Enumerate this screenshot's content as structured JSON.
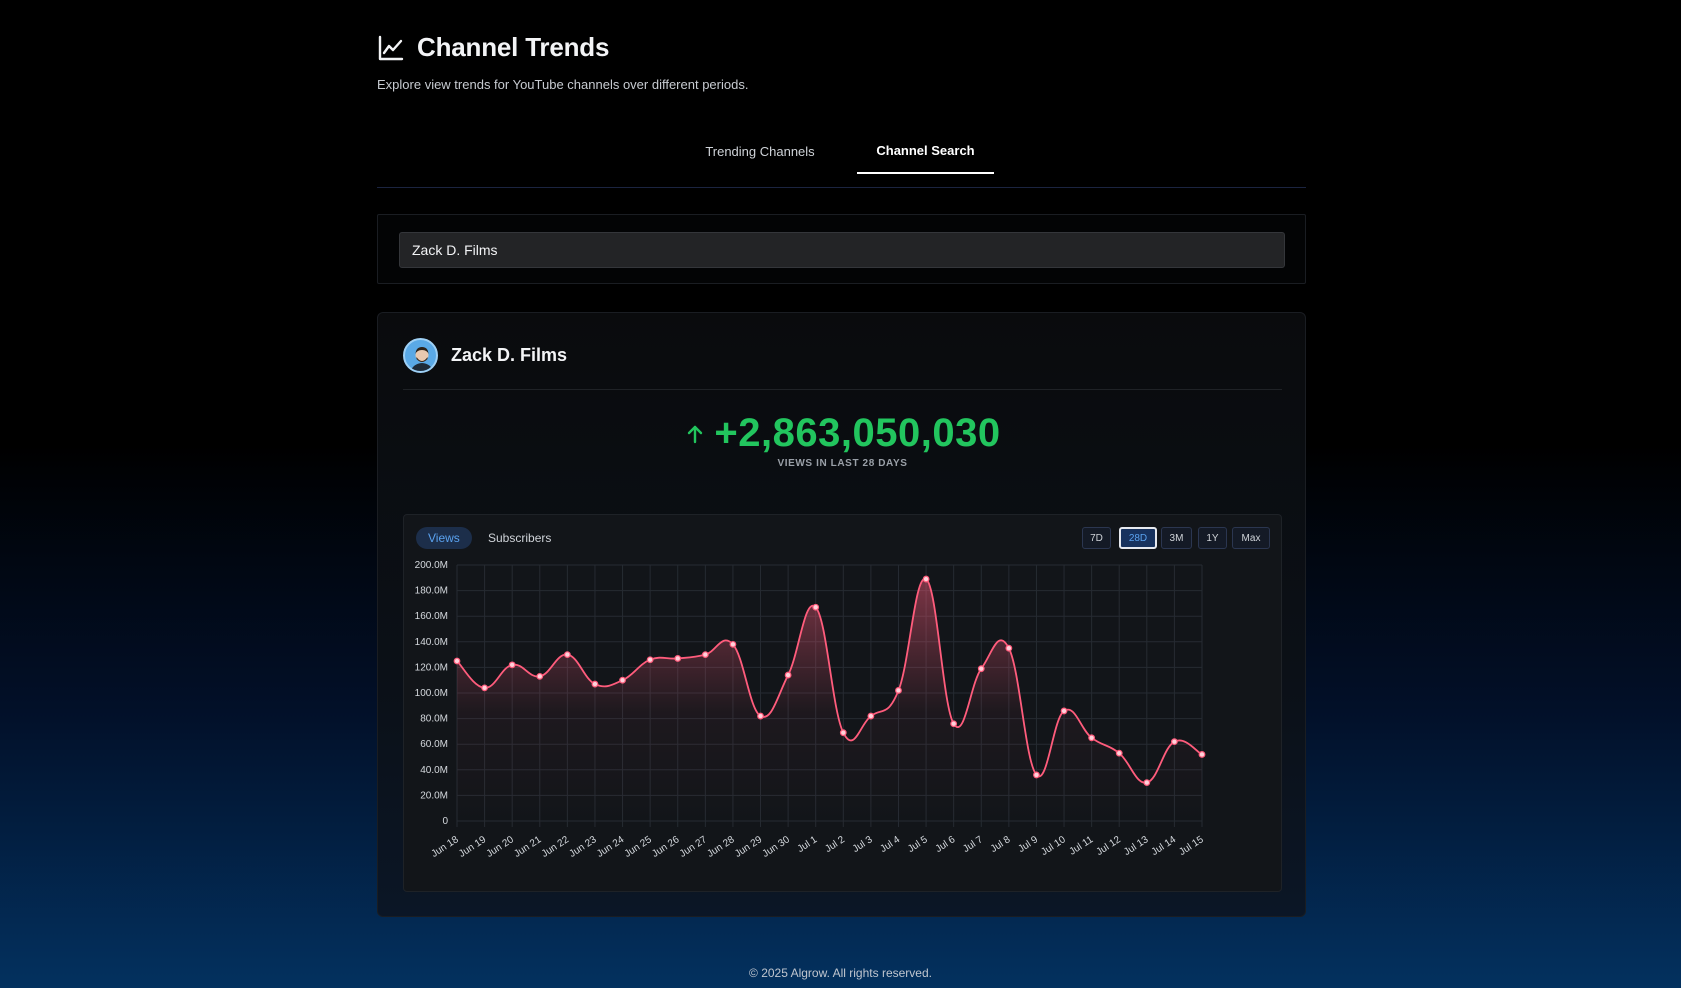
{
  "header": {
    "title": "Channel Trends",
    "subtitle": "Explore view trends for YouTube channels over different periods.",
    "icon": "line-chart-icon"
  },
  "tabs": [
    {
      "label": "Trending Channels",
      "active": false
    },
    {
      "label": "Channel Search",
      "active": true
    }
  ],
  "search": {
    "value": "Zack D. Films",
    "placeholder": ""
  },
  "channel": {
    "name": "Zack D. Films",
    "avatar_icon": "avatar-icon"
  },
  "stat": {
    "value": "+2,863,050,030",
    "label": "VIEWS IN LAST 28 DAYS",
    "color": "#22c55e"
  },
  "metric_tabs": [
    {
      "label": "Views",
      "active": true
    },
    {
      "label": "Subscribers",
      "active": false
    }
  ],
  "periods": [
    {
      "label": "7D",
      "active": false
    },
    {
      "label": "28D",
      "active": true
    },
    {
      "label": "3M",
      "active": false
    },
    {
      "label": "1Y",
      "active": false
    },
    {
      "label": "Max",
      "active": false
    }
  ],
  "chart_data": {
    "type": "area",
    "x": [
      "Jun 18",
      "Jun 19",
      "Jun 20",
      "Jun 21",
      "Jun 22",
      "Jun 23",
      "Jun 24",
      "Jun 25",
      "Jun 26",
      "Jun 27",
      "Jun 28",
      "Jun 29",
      "Jun 30",
      "Jul 1",
      "Jul 2",
      "Jul 3",
      "Jul 4",
      "Jul 5",
      "Jul 6",
      "Jul 7",
      "Jul 8",
      "Jul 9",
      "Jul 10",
      "Jul 11",
      "Jul 12",
      "Jul 13",
      "Jul 14",
      "Jul 15"
    ],
    "series": [
      {
        "values": [
          125,
          104,
          122,
          113,
          130,
          107,
          110,
          126,
          127,
          130,
          138,
          82,
          114,
          167,
          69,
          82,
          102,
          189,
          76,
          119,
          135,
          36,
          86,
          65,
          53,
          30,
          62,
          52
        ],
        "color": "#ff5c7c"
      }
    ],
    "yticks": [
      "0",
      "20.0M",
      "40.0M",
      "60.0M",
      "80.0M",
      "100.0M",
      "120.0M",
      "140.0M",
      "160.0M",
      "180.0M",
      "200.0M"
    ],
    "ylim": [
      0,
      200
    ],
    "y_unit": "M",
    "grid": true,
    "title": "",
    "xlabel": "",
    "ylabel": ""
  },
  "footer": {
    "text": "© 2025 Algrow. All rights reserved."
  }
}
